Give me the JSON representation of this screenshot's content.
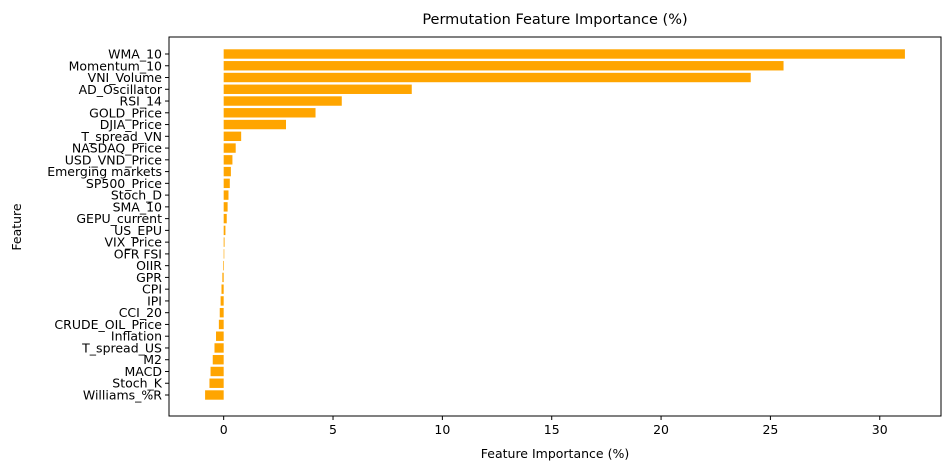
{
  "chart_data": {
    "type": "bar",
    "orientation": "horizontal",
    "title": "Permutation Feature Importance (%)",
    "xlabel": "Feature Importance (%)",
    "ylabel": "Feature",
    "xlim": [
      -2.5,
      32.8
    ],
    "xticks": [
      0,
      5,
      10,
      15,
      20,
      25,
      30
    ],
    "grid": false,
    "bar_color": "#FFA500",
    "categories": [
      "WMA_10",
      "Momentum_10",
      "VNI_Volume",
      "AD_Oscillator",
      "RSI_14",
      "GOLD_Price",
      "DJIA_Price",
      "T_spread_VN",
      "NASDAQ_Price",
      "USD_VND_Price",
      "Emerging markets",
      "SP500_Price",
      "Stoch_D",
      "SMA_10",
      "GEPU_current",
      "US_EPU",
      "VIX_Price",
      "OFR FSI",
      "OIIR",
      "GPR",
      "CPI",
      "IPI",
      "CCI_20",
      "CRUDE_OIL_Price",
      "Inflation",
      "T_spread_US",
      "M2",
      "MACD",
      "Stoch_K",
      "Williams_%R"
    ],
    "values": [
      31.15,
      25.6,
      24.1,
      8.6,
      5.4,
      4.2,
      2.85,
      0.8,
      0.55,
      0.4,
      0.33,
      0.28,
      0.22,
      0.18,
      0.14,
      0.08,
      0.04,
      0.02,
      -0.03,
      -0.06,
      -0.1,
      -0.14,
      -0.18,
      -0.22,
      -0.35,
      -0.42,
      -0.5,
      -0.6,
      -0.65,
      -0.85
    ]
  }
}
